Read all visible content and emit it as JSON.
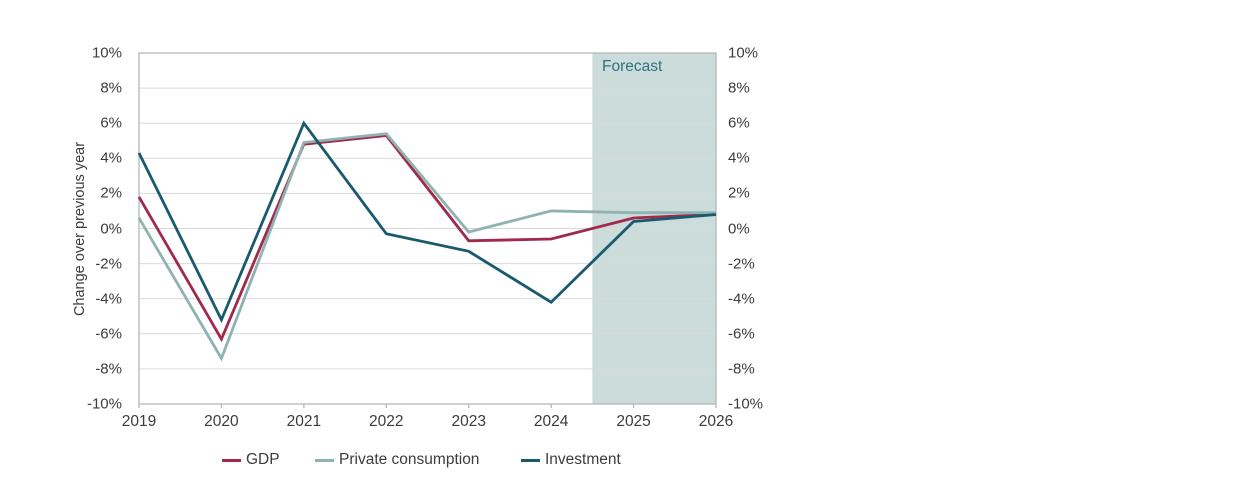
{
  "page": {
    "background": "#ffffff"
  },
  "chart_data": {
    "type": "line",
    "title": "",
    "ylabel": "Change over previous year",
    "x_labels": [
      "2019",
      "2020",
      "2021",
      "2022",
      "2023",
      "2024",
      "2025",
      "2026"
    ],
    "series": [
      {
        "name": "GDP",
        "color": "#a12a4c",
        "values": [
          1.8,
          -6.3,
          4.8,
          5.3,
          -0.7,
          -0.6,
          0.6,
          0.8
        ]
      },
      {
        "name": "Private consumption",
        "color": "#8fb3b0",
        "values": [
          0.6,
          -7.4,
          4.9,
          5.4,
          -0.2,
          1.0,
          0.9,
          0.9
        ]
      },
      {
        "name": "Investment",
        "color": "#1a5a6e",
        "values": [
          4.3,
          -5.2,
          6.0,
          -0.3,
          -1.3,
          -4.2,
          0.4,
          0.8
        ]
      }
    ],
    "ylim": [
      -10,
      10
    ],
    "ytick_step": 2,
    "ytick_labels": [
      "10%",
      "8%",
      "6%",
      "4%",
      "2%",
      "0%",
      "-2%",
      "-4%",
      "-6%",
      "-8%",
      "-10%"
    ],
    "grid": true,
    "legend_position": "bottom",
    "forecast": {
      "label": "Forecast",
      "start_year": 2024.5,
      "end_year": 2026,
      "band_color": "#cbdcda",
      "label_color": "#2e7383"
    },
    "colors": {
      "gridline": "#d9d9d9",
      "axis_border": "#b3b8b8",
      "tick_text": "#3c3c3c"
    }
  }
}
